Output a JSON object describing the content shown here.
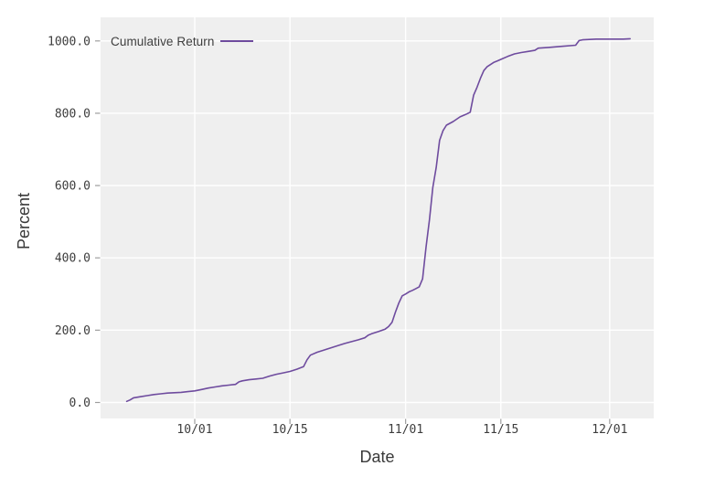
{
  "chart_data": {
    "type": "line",
    "title": "",
    "xlabel": "Date",
    "ylabel": "Percent",
    "legend_position": "top-left-inside",
    "grid": "white major gridlines on light-gray panel (ggplot style)",
    "x_tick_labels": [
      "10/01",
      "10/15",
      "11/01",
      "11/15",
      "12/01"
    ],
    "y_tick_labels": [
      "0.0",
      "200.0",
      "400.0",
      "600.0",
      "800.0",
      "1000.0"
    ],
    "ylim": [
      -44,
      1065
    ],
    "x_range_dates": [
      "09/17",
      "12/07"
    ],
    "series": [
      {
        "name": "Cumulative Return",
        "color": "#6e4b9e",
        "points": [
          [
            "09/21",
            3
          ],
          [
            "09/21",
            7
          ],
          [
            "09/22",
            13
          ],
          [
            "09/23",
            16
          ],
          [
            "09/24",
            19
          ],
          [
            "09/25",
            22
          ],
          [
            "09/26",
            24
          ],
          [
            "09/27",
            26
          ],
          [
            "09/28",
            27
          ],
          [
            "09/29",
            28
          ],
          [
            "09/30",
            30
          ],
          [
            "10/01",
            32
          ],
          [
            "10/02",
            36
          ],
          [
            "10/03",
            40
          ],
          [
            "10/04",
            43
          ],
          [
            "10/05",
            46
          ],
          [
            "10/06",
            48
          ],
          [
            "10/07",
            50
          ],
          [
            "10/07",
            57
          ],
          [
            "10/08",
            60
          ],
          [
            "10/09",
            63
          ],
          [
            "10/10",
            65
          ],
          [
            "10/11",
            67
          ],
          [
            "10/12",
            73
          ],
          [
            "10/13",
            78
          ],
          [
            "10/14",
            82
          ],
          [
            "10/15",
            86
          ],
          [
            "10/16",
            92
          ],
          [
            "10/17",
            99
          ],
          [
            "10/17",
            118
          ],
          [
            "10/18",
            131
          ],
          [
            "10/19",
            139
          ],
          [
            "10/20",
            145
          ],
          [
            "10/21",
            151
          ],
          [
            "10/22",
            157
          ],
          [
            "10/23",
            163
          ],
          [
            "10/24",
            168
          ],
          [
            "10/25",
            173
          ],
          [
            "10/26",
            179
          ],
          [
            "10/26",
            186
          ],
          [
            "10/27",
            190
          ],
          [
            "10/28",
            196
          ],
          [
            "10/29",
            203
          ],
          [
            "10/29",
            210
          ],
          [
            "10/30",
            222
          ],
          [
            "10/30",
            250
          ],
          [
            "10/31",
            275
          ],
          [
            "10/31",
            295
          ],
          [
            "11/01",
            300
          ],
          [
            "11/01",
            306
          ],
          [
            "11/02",
            310
          ],
          [
            "11/02",
            315
          ],
          [
            "11/03",
            320
          ],
          [
            "11/03",
            342
          ],
          [
            "11/04",
            430
          ],
          [
            "11/04",
            505
          ],
          [
            "11/05",
            595
          ],
          [
            "11/05",
            650
          ],
          [
            "11/06",
            725
          ],
          [
            "11/06",
            752
          ],
          [
            "11/07",
            767
          ],
          [
            "11/08",
            777
          ],
          [
            "11/09",
            790
          ],
          [
            "11/10",
            798
          ],
          [
            "11/10",
            803
          ],
          [
            "11/11",
            850
          ],
          [
            "11/11",
            872
          ],
          [
            "11/12",
            897
          ],
          [
            "11/12",
            918
          ],
          [
            "11/13",
            929
          ],
          [
            "11/14",
            941
          ],
          [
            "11/14",
            945
          ],
          [
            "11/15",
            949
          ],
          [
            "11/16",
            957
          ],
          [
            "11/17",
            964
          ],
          [
            "11/18",
            968
          ],
          [
            "11/19",
            971
          ],
          [
            "11/20",
            974
          ],
          [
            "11/20",
            980
          ],
          [
            "11/22",
            982
          ],
          [
            "11/24",
            985
          ],
          [
            "11/26",
            988
          ],
          [
            "11/26",
            1001
          ],
          [
            "11/27",
            1003
          ],
          [
            "11/29",
            1005
          ],
          [
            "12/01",
            1005
          ],
          [
            "12/03",
            1005
          ],
          [
            "12/04",
            1006
          ]
        ]
      }
    ]
  },
  "colors": {
    "page_bg": "#ffffff",
    "plot_bg": "#efefef",
    "grid": "#ffffff",
    "tick_mark": "#9e9e9e",
    "text": "#3d3d3d",
    "line": "#6e4b9e"
  }
}
